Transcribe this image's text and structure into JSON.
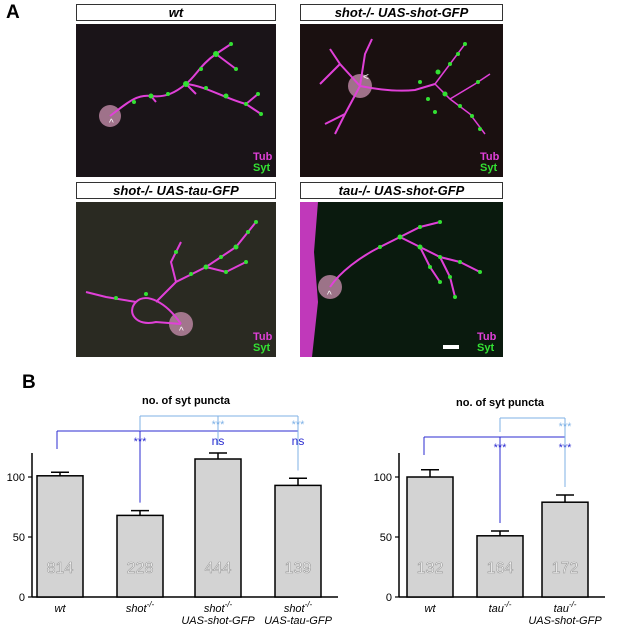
{
  "figure": {
    "panel_a_label": "A",
    "panel_b_label": "B"
  },
  "micrographs": [
    {
      "label": "wt",
      "stain_1": "Tub",
      "stain_2": "Syt"
    },
    {
      "label": "shot-/- UAS-shot-GFP",
      "stain_1": "Tub",
      "stain_2": "Syt"
    },
    {
      "label": "shot-/- UAS-tau-GFP",
      "stain_1": "Tub",
      "stain_2": "Syt"
    },
    {
      "label": "tau-/- UAS-shot-GFP",
      "stain_1": "Tub",
      "stain_2": "Syt"
    }
  ],
  "colors": {
    "tubulin": "#e040d8",
    "synaptotagmin": "#33e033",
    "bar_fill": "#d3d3d3",
    "sig_dark": "#2b2bd0",
    "sig_light": "#7fb2e6"
  },
  "chart_data": [
    {
      "type": "bar",
      "title": "no. of syt puncta",
      "categories": [
        "wt",
        "shot-/-",
        "shot-/- UAS-shot-GFP",
        "shot-/- UAS-tau-GFP"
      ],
      "values": [
        101,
        68,
        115,
        93
      ],
      "errors": [
        3,
        4,
        5,
        6
      ],
      "n_labels": [
        "814",
        "228",
        "444",
        "139"
      ],
      "yticks": [
        0,
        50,
        100
      ],
      "ylim": [
        0,
        120
      ],
      "significance": [
        {
          "from": 0,
          "to": 1,
          "label": "***",
          "color": "dark"
        },
        {
          "from": 0,
          "to": 2,
          "label": "ns",
          "color": "dark"
        },
        {
          "from": 0,
          "to": 3,
          "label": "ns",
          "color": "dark"
        },
        {
          "from": 1,
          "to": 2,
          "label": "***",
          "color": "light"
        },
        {
          "from": 1,
          "to": 3,
          "label": "***",
          "color": "light"
        }
      ]
    },
    {
      "type": "bar",
      "title": "no. of syt puncta",
      "categories": [
        "wt",
        "tau-/-",
        "tau-/- UAS-shot-GFP"
      ],
      "values": [
        100,
        51,
        79
      ],
      "errors": [
        6,
        4,
        6
      ],
      "n_labels": [
        "132",
        "164",
        "172"
      ],
      "yticks": [
        0,
        50,
        100
      ],
      "ylim": [
        0,
        120
      ],
      "significance": [
        {
          "from": 0,
          "to": 1,
          "label": "***",
          "color": "dark"
        },
        {
          "from": 0,
          "to": 2,
          "label": "***",
          "color": "dark"
        },
        {
          "from": 1,
          "to": 2,
          "label": "***",
          "color": "light"
        }
      ]
    }
  ]
}
